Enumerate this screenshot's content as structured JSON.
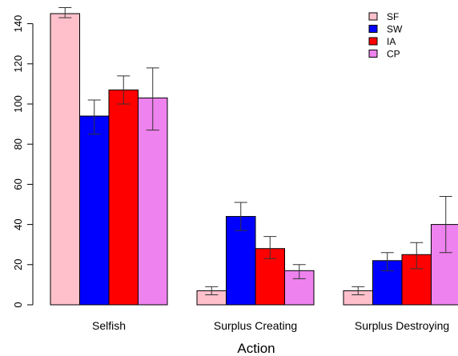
{
  "chart_data": {
    "type": "bar",
    "title": "",
    "xlabel": "Action",
    "ylabel": "",
    "ylim": [
      0,
      146
    ],
    "y_ticks": [
      "0",
      "20",
      "40",
      "60",
      "80",
      "100",
      "120",
      "140"
    ],
    "categories": [
      "Selfish",
      "Surplus Creating",
      "Surplus Destroying"
    ],
    "series": [
      {
        "name": "SF",
        "color": "#ffc0cb",
        "values": [
          145,
          7,
          7
        ],
        "error_low": [
          143,
          5,
          5
        ],
        "error_high": [
          148,
          9,
          9
        ]
      },
      {
        "name": "SW",
        "color": "#0000ff",
        "values": [
          94,
          44,
          22
        ],
        "error_low": [
          85,
          37,
          17
        ],
        "error_high": [
          102,
          51,
          26
        ]
      },
      {
        "name": "IA",
        "color": "#ff0000",
        "values": [
          107,
          28,
          25
        ],
        "error_low": [
          100,
          23,
          18
        ],
        "error_high": [
          114,
          34,
          31
        ]
      },
      {
        "name": "CP",
        "color": "#ee82ee",
        "values": [
          103,
          17,
          40
        ],
        "error_low": [
          87,
          13,
          26
        ],
        "error_high": [
          118,
          20,
          54
        ]
      }
    ],
    "legend_position": "top-right",
    "grid": false
  }
}
